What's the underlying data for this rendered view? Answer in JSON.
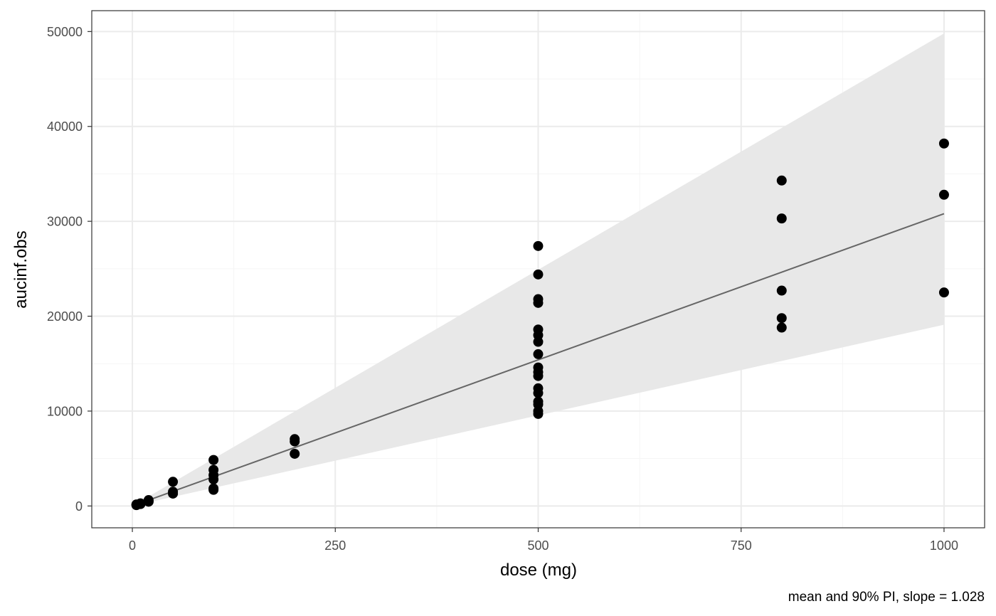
{
  "chart_data": {
    "type": "scatter",
    "xlabel": "dose (mg)",
    "ylabel": "aucinf.obs",
    "caption": "mean and 90% PI, slope = 1.028",
    "xlim": [
      -50,
      1050
    ],
    "ylim": [
      -2300,
      52200
    ],
    "x_ticks": [
      0,
      250,
      500,
      750,
      1000
    ],
    "x_tick_labels": [
      "0",
      "250",
      "500",
      "750",
      "1000"
    ],
    "y_ticks": [
      0,
      10000,
      20000,
      30000,
      40000,
      50000
    ],
    "y_tick_labels": [
      "0",
      "10000",
      "20000",
      "30000",
      "40000",
      "50000"
    ],
    "grid": true,
    "legend": "none",
    "colors": {
      "points": "#000000",
      "fit_line": "#666666",
      "ribbon": "#e8e8e8",
      "grid_major": "#ebebeb",
      "grid_minor": "#f5f5f5",
      "panel_border": "#333333"
    },
    "points": [
      {
        "x": 5,
        "y": 120
      },
      {
        "x": 5,
        "y": 160
      },
      {
        "x": 5,
        "y": 90
      },
      {
        "x": 10,
        "y": 200
      },
      {
        "x": 10,
        "y": 280
      },
      {
        "x": 10,
        "y": 240
      },
      {
        "x": 20,
        "y": 450
      },
      {
        "x": 20,
        "y": 520
      },
      {
        "x": 20,
        "y": 620
      },
      {
        "x": 50,
        "y": 1300
      },
      {
        "x": 50,
        "y": 1500
      },
      {
        "x": 50,
        "y": 2550
      },
      {
        "x": 100,
        "y": 1700
      },
      {
        "x": 100,
        "y": 1850
      },
      {
        "x": 100,
        "y": 2800
      },
      {
        "x": 100,
        "y": 3250
      },
      {
        "x": 100,
        "y": 3800
      },
      {
        "x": 100,
        "y": 4850
      },
      {
        "x": 200,
        "y": 5500
      },
      {
        "x": 200,
        "y": 6800
      },
      {
        "x": 200,
        "y": 7050
      },
      {
        "x": 500,
        "y": 9700
      },
      {
        "x": 500,
        "y": 10000
      },
      {
        "x": 500,
        "y": 10700
      },
      {
        "x": 500,
        "y": 11000
      },
      {
        "x": 500,
        "y": 11900
      },
      {
        "x": 500,
        "y": 12400
      },
      {
        "x": 500,
        "y": 13700
      },
      {
        "x": 500,
        "y": 14100
      },
      {
        "x": 500,
        "y": 14600
      },
      {
        "x": 500,
        "y": 16000
      },
      {
        "x": 500,
        "y": 17300
      },
      {
        "x": 500,
        "y": 18000
      },
      {
        "x": 500,
        "y": 18600
      },
      {
        "x": 500,
        "y": 21400
      },
      {
        "x": 500,
        "y": 21800
      },
      {
        "x": 500,
        "y": 24400
      },
      {
        "x": 500,
        "y": 27400
      },
      {
        "x": 800,
        "y": 18800
      },
      {
        "x": 800,
        "y": 19800
      },
      {
        "x": 800,
        "y": 22700
      },
      {
        "x": 800,
        "y": 30300
      },
      {
        "x": 800,
        "y": 34300
      },
      {
        "x": 1000,
        "y": 22500
      },
      {
        "x": 1000,
        "y": 32800
      },
      {
        "x": 1000,
        "y": 38200
      }
    ],
    "fit_line": [
      {
        "x": 5,
        "y": 154
      },
      {
        "x": 1000,
        "y": 30800
      }
    ],
    "ribbon": {
      "x": [
        5,
        1000
      ],
      "lower": [
        95,
        19100
      ],
      "upper": [
        250,
        49800
      ]
    }
  }
}
